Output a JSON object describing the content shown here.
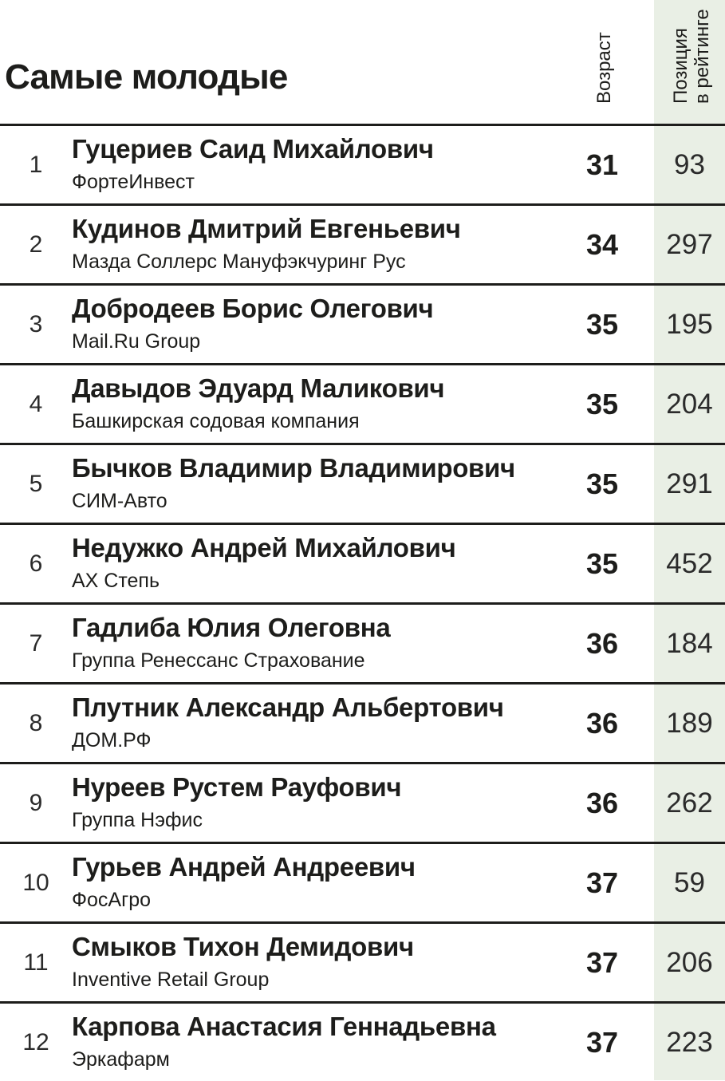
{
  "colors": {
    "position_column_bg": "#e9efe5",
    "separator_line": "#1d1d1b",
    "text": "#1d1d1b"
  },
  "header": {
    "title": "Самые молодые",
    "age_label": "Возраст",
    "position_label_line1": "Позиция",
    "position_label_line2": "в рейтинге"
  },
  "rows": [
    {
      "rank": "1",
      "name": "Гуцериев Саид Михайлович",
      "company": "ФортеИнвест",
      "age": "31",
      "position": "93"
    },
    {
      "rank": "2",
      "name": "Кудинов Дмитрий Евгеньевич",
      "company": "Мазда Соллерс Мануфэкчуринг Рус",
      "age": "34",
      "position": "297"
    },
    {
      "rank": "3",
      "name": "Добродеев Борис Олегович",
      "company": "Mail.Ru Group",
      "age": "35",
      "position": "195"
    },
    {
      "rank": "4",
      "name": "Давыдов Эдуард Маликович",
      "company": "Башкирская содовая компания",
      "age": "35",
      "position": "204"
    },
    {
      "rank": "5",
      "name": "Бычков Владимир Владимирович",
      "company": "СИМ-Авто",
      "age": "35",
      "position": "291"
    },
    {
      "rank": "6",
      "name": "Недужко Андрей Михайлович",
      "company": "АХ Степь",
      "age": "35",
      "position": "452"
    },
    {
      "rank": "7",
      "name": "Гадлиба Юлия Олеговна",
      "company": "Группа Ренессанс Страхование",
      "age": "36",
      "position": "184"
    },
    {
      "rank": "8",
      "name": "Плутник Александр Альбертович",
      "company": "ДОМ.РФ",
      "age": "36",
      "position": "189"
    },
    {
      "rank": "9",
      "name": "Нуреев Рустем Рауфович",
      "company": "Группа Нэфис",
      "age": "36",
      "position": "262"
    },
    {
      "rank": "10",
      "name": "Гурьев Андрей Андреевич",
      "company": "ФосАгро",
      "age": "37",
      "position": "59"
    },
    {
      "rank": "11",
      "name": "Смыков Тихон Демидович",
      "company": "Inventive Retail Group",
      "age": "37",
      "position": "206"
    },
    {
      "rank": "12",
      "name": "Карпова Анастасия Геннадьевна",
      "company": "Эркафарм",
      "age": "37",
      "position": "223"
    }
  ]
}
